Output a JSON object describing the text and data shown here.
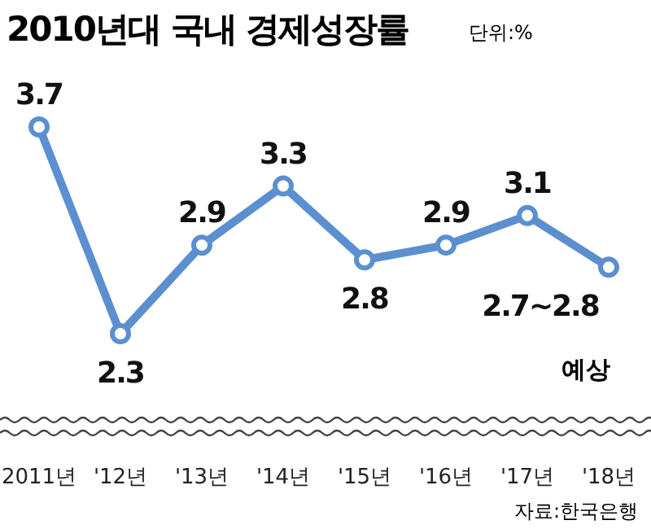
{
  "chart_data": {
    "type": "line",
    "title": "2010년대 국내 경제성장률",
    "subtitle": "단위:%",
    "categories": [
      "2011년",
      "'12년",
      "'13년",
      "'14년",
      "'15년",
      "'16년",
      "'17년",
      "'18년"
    ],
    "series": [
      {
        "color": "#5b8fd0",
        "values": [
          3.7,
          2.3,
          2.9,
          3.3,
          2.8,
          2.9,
          3.1,
          2.75
        ],
        "value_labels": [
          "3.7",
          "2.3",
          "2.9",
          "3.3",
          "2.8",
          "2.9",
          "3.1",
          "2.7~2.8"
        ]
      }
    ],
    "marker": "circle",
    "annotations": [
      "예상",
      "자료:한국은행"
    ]
  }
}
